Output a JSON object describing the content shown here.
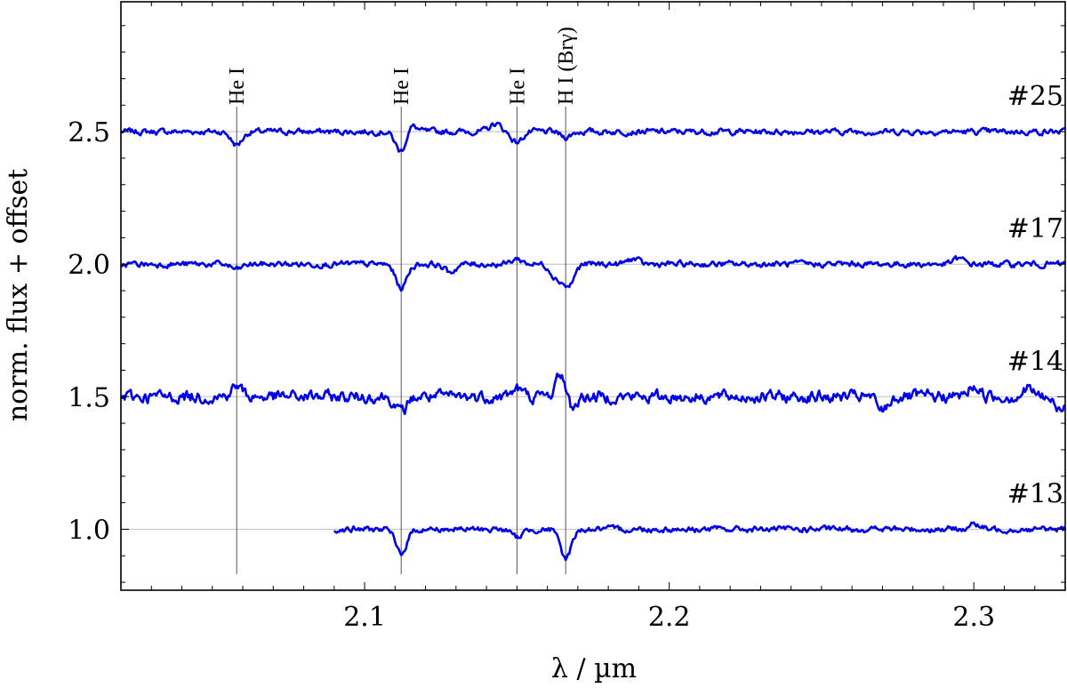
{
  "chart_data": {
    "type": "line",
    "title": "",
    "xlabel": "λ / µm",
    "ylabel": "norm. flux + offset",
    "xlim": [
      2.02,
      2.33
    ],
    "ylim": [
      0.77,
      2.99
    ],
    "x_ticks": [
      2.1,
      2.2,
      2.3
    ],
    "x_tick_labels": [
      "2.1",
      "2.2",
      "2.3"
    ],
    "y_ticks": [
      1.0,
      1.5,
      2.0,
      2.5
    ],
    "y_tick_labels": [
      "1.0",
      "1.5",
      "2.0",
      "2.5"
    ],
    "grid": false,
    "legend": "none",
    "line_color": "#0000e6",
    "reference_line_color": "#c8c8c8",
    "spectral_lines": [
      {
        "label": "He I",
        "x": 2.058
      },
      {
        "label": "He I",
        "x": 2.112
      },
      {
        "label": "He I",
        "x": 2.15
      },
      {
        "label": "H I (Brγ)",
        "x": 2.166
      }
    ],
    "series": [
      {
        "label": "#25",
        "offset": 2.5,
        "x_start": 2.02,
        "x_end": 2.33,
        "features": [
          [
            2.058,
            -0.05
          ],
          [
            2.112,
            -0.08
          ],
          [
            2.115,
            0.03
          ],
          [
            2.143,
            0.03
          ],
          [
            2.15,
            -0.04
          ],
          [
            2.166,
            -0.02
          ]
        ]
      },
      {
        "label": "#17",
        "offset": 2.0,
        "x_start": 2.02,
        "x_end": 2.33,
        "features": [
          [
            2.058,
            -0.02
          ],
          [
            2.112,
            -0.09
          ],
          [
            2.128,
            -0.03
          ],
          [
            2.15,
            0.02
          ],
          [
            2.163,
            -0.05
          ],
          [
            2.167,
            -0.08
          ],
          [
            2.188,
            0.02
          ],
          [
            2.295,
            0.02
          ]
        ]
      },
      {
        "label": "#14",
        "offset": 1.5,
        "x_start": 2.02,
        "x_end": 2.33,
        "features": [
          [
            2.058,
            0.04
          ],
          [
            2.112,
            -0.06
          ],
          [
            2.15,
            0.03
          ],
          [
            2.165,
            0.12
          ],
          [
            2.167,
            -0.08
          ],
          [
            2.27,
            -0.05
          ],
          [
            2.3,
            0.04
          ],
          [
            2.318,
            0.03
          ],
          [
            2.328,
            -0.05
          ]
        ]
      },
      {
        "label": "#13",
        "offset": 1.0,
        "x_start": 2.09,
        "x_end": 2.33,
        "features": [
          [
            2.112,
            -0.09
          ],
          [
            2.15,
            -0.03
          ],
          [
            2.166,
            -0.11
          ],
          [
            2.3,
            0.02
          ]
        ]
      }
    ]
  }
}
